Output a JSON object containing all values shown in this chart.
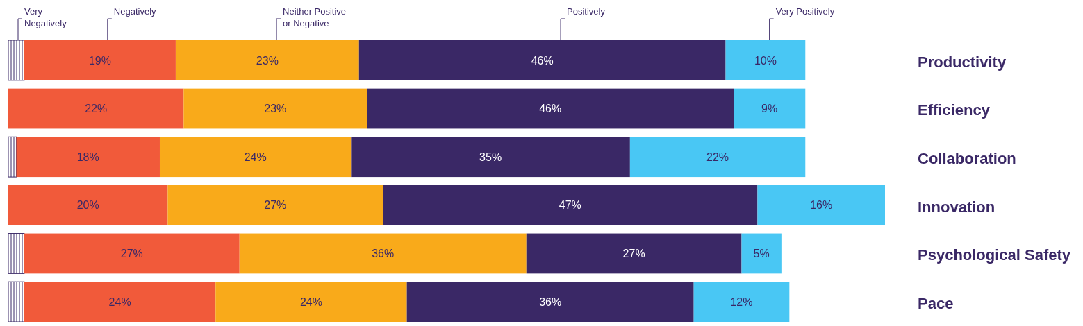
{
  "chart_data": {
    "type": "bar",
    "orientation": "horizontal",
    "stacked": true,
    "legend": "top",
    "categories": [
      "Productivity",
      "Efficiency",
      "Collaboration",
      "Innovation",
      "Psychological Safety",
      "Pace"
    ],
    "series": [
      {
        "name": "Very Negatively",
        "color": "#ffffff",
        "values": [
          2,
          0,
          1,
          0,
          2,
          2
        ]
      },
      {
        "name": "Negatively",
        "color": "#f15a3a",
        "values": [
          19,
          22,
          18,
          20,
          27,
          24
        ],
        "value_labels": [
          "19%",
          "22%",
          "18%",
          "20%",
          "27%",
          "24%"
        ]
      },
      {
        "name": "Neither Positive or Negative",
        "color": "#f9aa1a",
        "values": [
          23,
          23,
          24,
          27,
          36,
          24
        ],
        "value_labels": [
          "23%",
          "23%",
          "24%",
          "27%",
          "36%",
          "24%"
        ]
      },
      {
        "name": "Positively",
        "color": "#3a2866",
        "values": [
          46,
          46,
          35,
          47,
          27,
          36
        ],
        "value_labels": [
          "46%",
          "46%",
          "35%",
          "47%",
          "27%",
          "36%"
        ]
      },
      {
        "name": "Very Positively",
        "color": "#49c7f4",
        "values": [
          10,
          9,
          22,
          16,
          5,
          12
        ],
        "value_labels": [
          "10%",
          "9%",
          "22%",
          "16%",
          "5%",
          "12%"
        ]
      }
    ]
  }
}
